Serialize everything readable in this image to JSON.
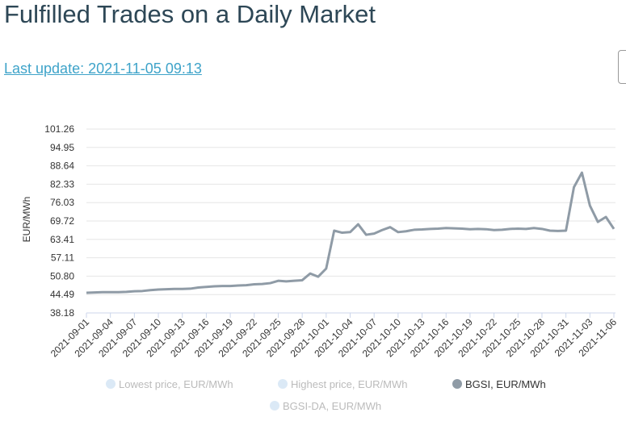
{
  "header": {
    "title": "Fulfilled Trades on a Daily Market",
    "last_update": "Last update: 2021-11-05 09:13"
  },
  "chart_data": {
    "type": "line",
    "y_label": "EUR/MWh",
    "categories": [
      "2021-09-01",
      null,
      null,
      "2021-09-04",
      null,
      null,
      "2021-09-07",
      null,
      null,
      "2021-09-10",
      null,
      null,
      "2021-09-13",
      null,
      null,
      "2021-09-16",
      null,
      null,
      "2021-09-19",
      null,
      null,
      "2021-09-22",
      null,
      null,
      "2021-09-25",
      null,
      null,
      "2021-09-28",
      null,
      null,
      "2021-10-01",
      null,
      null,
      "2021-10-04",
      null,
      null,
      "2021-10-07",
      null,
      null,
      "2021-10-10",
      null,
      null,
      "2021-10-13",
      null,
      null,
      "2021-10-16",
      null,
      null,
      "2021-10-19",
      null,
      null,
      "2021-10-22",
      null,
      null,
      "2021-10-25",
      null,
      null,
      "2021-10-28",
      null,
      null,
      "2021-10-31",
      null,
      null,
      "2021-11-03",
      null,
      null,
      "2021-11-06"
    ],
    "series": [
      {
        "name": "Lowest price, EUR/MWh",
        "color": "#dbe9f6",
        "visible": false
      },
      {
        "name": "Highest price, EUR/MWh",
        "color": "#dbe9f6",
        "visible": false
      },
      {
        "name": "BGSI, EUR/MWh",
        "color": "#8f9ba6",
        "visible": true,
        "values": [
          45.1,
          45.2,
          45.3,
          45.3,
          45.3,
          45.4,
          45.6,
          45.7,
          46.0,
          46.2,
          46.3,
          46.4,
          46.4,
          46.5,
          46.9,
          47.1,
          47.3,
          47.4,
          47.4,
          47.6,
          47.7,
          48.0,
          48.1,
          48.4,
          49.2,
          49.0,
          49.2,
          49.4,
          51.7,
          50.6,
          53.4,
          66.4,
          65.7,
          65.9,
          68.6,
          65.0,
          65.4,
          66.6,
          67.6,
          65.9,
          66.2,
          66.7,
          66.8,
          67.0,
          67.1,
          67.3,
          67.2,
          67.1,
          66.9,
          67.0,
          66.9,
          66.6,
          66.7,
          67.0,
          67.1,
          67.0,
          67.3,
          67.0,
          66.4,
          66.3,
          66.4,
          81.3,
          86.3,
          75.0,
          69.4,
          71.1,
          67.0
        ]
      },
      {
        "name": "BGSI-DA, EUR/MWh",
        "color": "#dbe9f6",
        "visible": false
      }
    ],
    "ylim": [
      38.18,
      101.26
    ],
    "yticks": [
      38.18,
      44.49,
      {
        "value": 50.8,
        "label": "50.80"
      },
      57.11,
      63.41,
      69.72,
      76.03,
      82.33,
      88.64,
      94.95,
      101.26
    ],
    "grid": true
  }
}
